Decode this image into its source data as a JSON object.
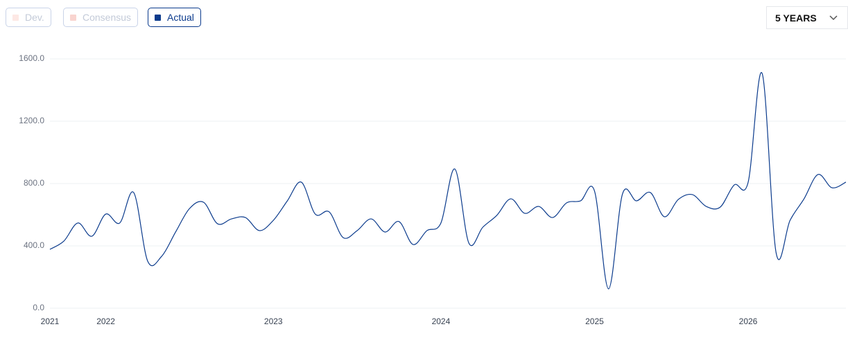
{
  "controls": {
    "toggles": [
      {
        "label": "Dev.",
        "color": "#fde8e4",
        "active": false
      },
      {
        "label": "Consensus",
        "color": "#f9d4cf",
        "active": false
      },
      {
        "label": "Actual",
        "color": "#0a3a8c",
        "active": true
      }
    ],
    "range": "5 YEARS"
  },
  "chart_data": {
    "type": "line",
    "categories": [
      "2021",
      null,
      null,
      null,
      "2022",
      null,
      null,
      null,
      null,
      null,
      null,
      null,
      null,
      null,
      null,
      null,
      "2023",
      null,
      null,
      null,
      null,
      null,
      null,
      null,
      null,
      null,
      null,
      null,
      "2024",
      null,
      null,
      null,
      null,
      null,
      null,
      null,
      null,
      null,
      null,
      "2025",
      null,
      null,
      null,
      null,
      null,
      null,
      null,
      null,
      null,
      null,
      "2026",
      null,
      null,
      null,
      null,
      null,
      null,
      null
    ],
    "series": [
      {
        "name": "Actual",
        "color": "#0a3a8c",
        "values": [
          378,
          431,
          547,
          462,
          604,
          547,
          742,
          302,
          333,
          489,
          640,
          680,
          542,
          573,
          582,
          498,
          564,
          689,
          809,
          604,
          618,
          453,
          498,
          573,
          489,
          556,
          409,
          498,
          547,
          893,
          418,
          520,
          596,
          702,
          609,
          653,
          582,
          676,
          689,
          751,
          124,
          733,
          689,
          742,
          587,
          698,
          729,
          653,
          649,
          791,
          809,
          1507,
          356,
          564,
          702,
          858,
          773,
          809
        ]
      }
    ],
    "ylim": [
      0,
      1600
    ],
    "yticks": [
      {
        "value": 0,
        "label": "0.0"
      },
      {
        "value": 400,
        "label": "400.0"
      },
      {
        "value": 800,
        "label": "800.0"
      },
      {
        "value": 1200,
        "label": "1200.0"
      },
      {
        "value": 1600,
        "label": "1600.0"
      }
    ],
    "grid": true
  }
}
